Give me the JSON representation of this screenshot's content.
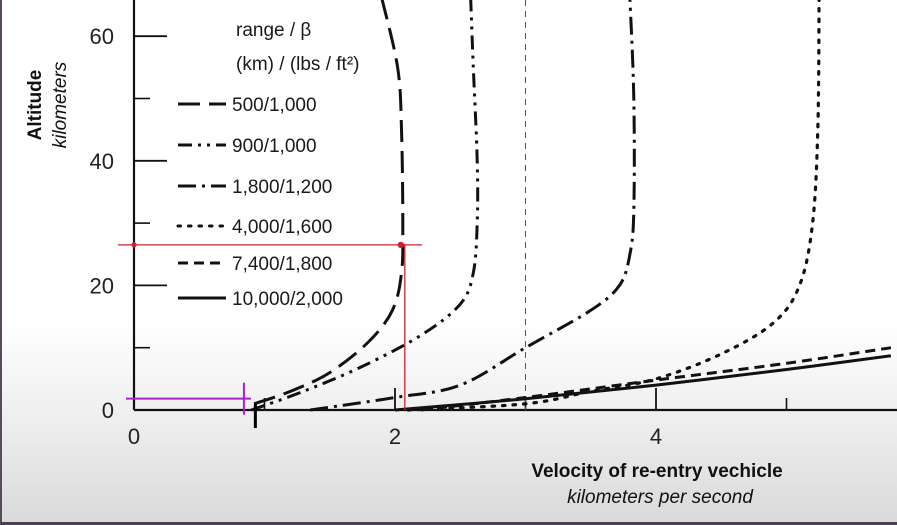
{
  "chart_data": {
    "type": "line",
    "title": "",
    "legend_title": [
      "range / β",
      "(km) / (lbs / ft²)"
    ],
    "xlabel": "Velocity of re-entry vechicle",
    "xlabel_units": "kilometers per second",
    "ylabel": "Altitude",
    "ylabel_units": "kilometers",
    "xlim": [
      0,
      5.8
    ],
    "ylim": [
      0,
      66
    ],
    "x_ticks": [
      "0",
      "2",
      "4"
    ],
    "y_ticks": [
      "0",
      "20",
      "40",
      "60"
    ],
    "legend_placement": "top-left",
    "grid": false,
    "series": [
      {
        "name": "500/1,000",
        "dash": "long-dash",
        "points": [
          [
            0.92,
            1
          ],
          [
            1.2,
            3
          ],
          [
            1.5,
            6
          ],
          [
            1.8,
            11
          ],
          [
            1.98,
            16
          ],
          [
            2.05,
            22
          ],
          [
            2.06,
            30
          ],
          [
            2.05,
            45
          ],
          [
            2.02,
            55
          ],
          [
            1.9,
            66
          ]
        ]
      },
      {
        "name": "900/1,000",
        "dash": "dash-dot-dot",
        "points": [
          [
            0.9,
            0
          ],
          [
            1.3,
            3
          ],
          [
            1.75,
            7
          ],
          [
            2.2,
            12
          ],
          [
            2.5,
            17
          ],
          [
            2.6,
            22
          ],
          [
            2.63,
            30
          ],
          [
            2.63,
            40
          ],
          [
            2.6,
            55
          ],
          [
            2.58,
            66
          ]
        ]
      },
      {
        "name": "1,800/1,200",
        "dash": "dash-dot",
        "points": [
          [
            1.35,
            0
          ],
          [
            2.0,
            2
          ],
          [
            2.5,
            4
          ],
          [
            3.0,
            10
          ],
          [
            3.5,
            16
          ],
          [
            3.72,
            20
          ],
          [
            3.8,
            25
          ],
          [
            3.83,
            32
          ],
          [
            3.83,
            50
          ],
          [
            3.8,
            66
          ]
        ]
      },
      {
        "name": "4,000/1,600",
        "dash": "dotted",
        "points": [
          [
            2.1,
            0
          ],
          [
            3.0,
            1
          ],
          [
            3.5,
            3
          ],
          [
            4.0,
            5
          ],
          [
            4.5,
            9
          ],
          [
            4.9,
            14
          ],
          [
            5.1,
            20
          ],
          [
            5.2,
            30
          ],
          [
            5.24,
            45
          ],
          [
            5.25,
            66
          ]
        ]
      },
      {
        "name": "7,400/1,800",
        "dash": "short-dash",
        "points": [
          [
            2.2,
            0
          ],
          [
            3.0,
            2
          ],
          [
            4.0,
            4.8
          ],
          [
            5.0,
            7.5
          ],
          [
            5.8,
            10
          ]
        ]
      },
      {
        "name": "10,000/2,000",
        "dash": "solid",
        "points": [
          [
            2.0,
            0
          ],
          [
            3.0,
            1.8
          ],
          [
            4.0,
            4
          ],
          [
            5.0,
            6.5
          ],
          [
            5.8,
            8.7
          ]
        ]
      }
    ],
    "annotations": [
      {
        "type": "crosshair",
        "color": "#cc2233",
        "x": 2.06,
        "y": 26.5
      },
      {
        "type": "crosshair",
        "color": "#aa22cc",
        "x": 0.85,
        "y": 1.5
      }
    ],
    "reference_line": {
      "x": 3.0,
      "style": "dashed"
    }
  }
}
